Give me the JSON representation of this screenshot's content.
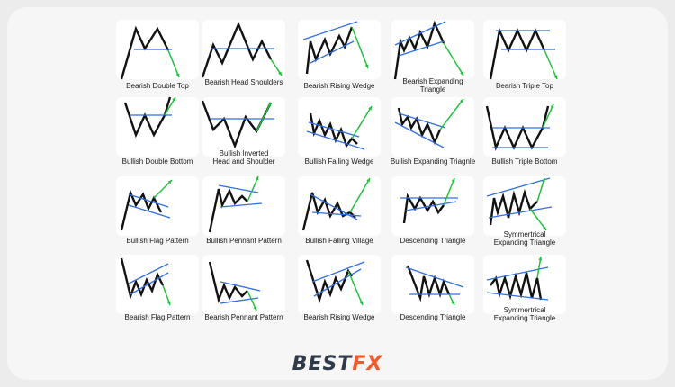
{
  "patterns": [
    {
      "label": "Bearish Double Top",
      "pattern": "bearish-double-top"
    },
    {
      "label": "Bearish Head Shoulders",
      "pattern": "bearish-head-shoulders"
    },
    {
      "label": "Bearish Rising Wedge",
      "pattern": "bearish-rising-wedge"
    },
    {
      "label": "Bearish Expanding\nTriangle",
      "pattern": "bearish-expanding-triangle"
    },
    {
      "label": "Bearish Triple Top",
      "pattern": "bearish-triple-top"
    },
    {
      "label": "Bullish Double Bottom",
      "pattern": "bullish-double-bottom"
    },
    {
      "label": "Bullish Inverted\nHead and Shoulder",
      "pattern": "bullish-inverted-head-shoulder"
    },
    {
      "label": "Bullish Falling Wedge",
      "pattern": "bullish-falling-wedge"
    },
    {
      "label": "Bullish Expanding Triagnle",
      "pattern": "bullish-expanding-triangle"
    },
    {
      "label": "Bullish Triple Bottom",
      "pattern": "bullish-triple-bottom"
    },
    {
      "label": "Bullish Flag Pattern",
      "pattern": "bullish-flag"
    },
    {
      "label": "Bullish Pennant Pattern",
      "pattern": "bullish-pennant"
    },
    {
      "label": "Bullish Falling Village",
      "pattern": "bullish-falling-village"
    },
    {
      "label": "Descending Triangle",
      "pattern": "descending-triangle"
    },
    {
      "label": "Symmertrical\nExpanding Triangle",
      "pattern": "symmetrical-expanding-triangle-up"
    },
    {
      "label": "Bearish Flag Pattern",
      "pattern": "bearish-flag"
    },
    {
      "label": "Bearish Pennant Pattern",
      "pattern": "bearish-pennant"
    },
    {
      "label": "Bearish Rising Wedge",
      "pattern": "bearish-rising-wedge-2"
    },
    {
      "label": "Descending Triangle",
      "pattern": "descending-triangle-2"
    },
    {
      "label": "Symmertrical\nExpanding Triangle",
      "pattern": "symmetrical-expanding-triangle-down"
    }
  ],
  "colors": {
    "price": "#121212",
    "trendline": "#2f6fe0",
    "breakout": "#1fc23e",
    "brand_dark": "#2f3a4a",
    "brand_accent": "#f45a27"
  },
  "logo": {
    "part1": "BEST",
    "part2": "FX"
  }
}
